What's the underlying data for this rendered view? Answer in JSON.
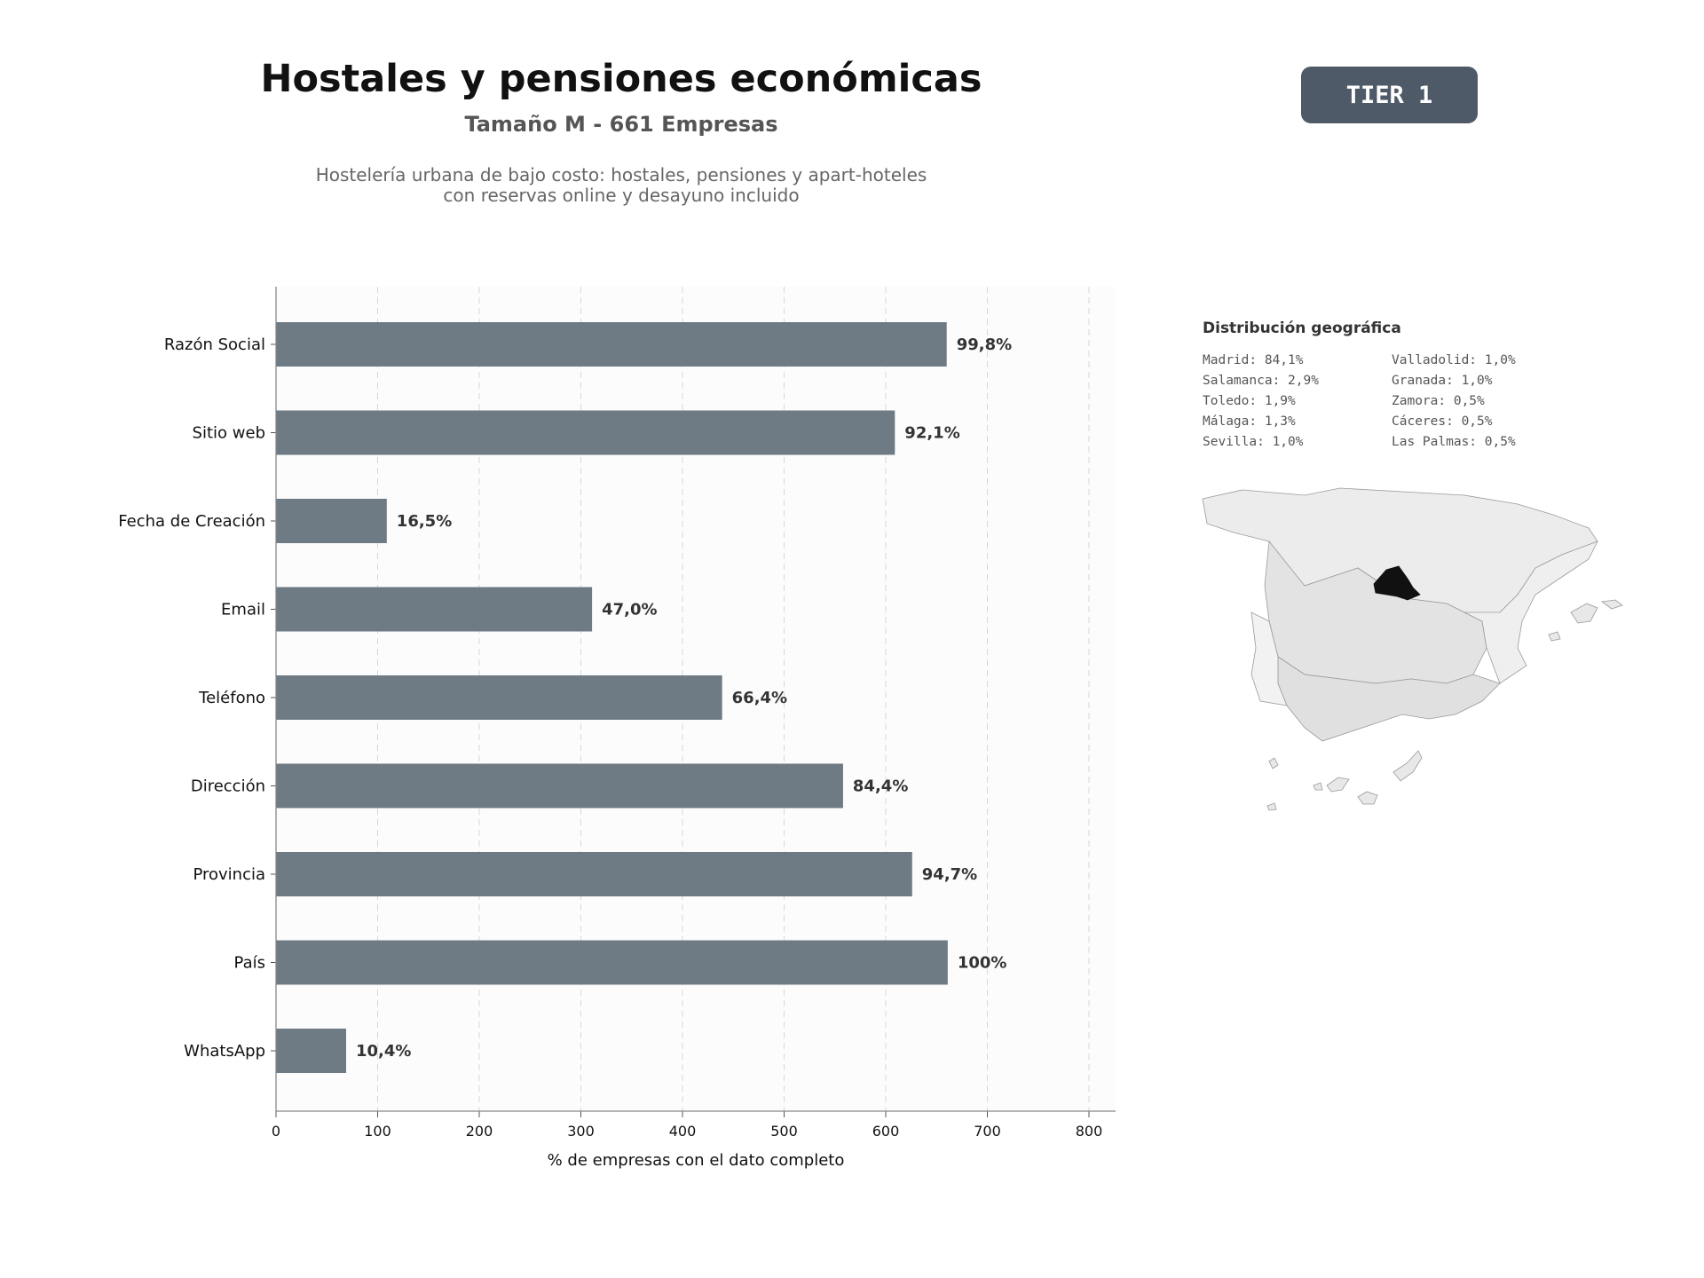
{
  "header": {
    "title": "Hostales y pensiones económicas",
    "subtitle": "Tamaño M - 661 Empresas",
    "description_line1": "Hostelería urbana de bajo costo: hostales, pensiones y apart-hoteles",
    "description_line2": "con reservas online y desayuno incluido",
    "badge": "TIER 1"
  },
  "colors": {
    "bar": "#6e7a84",
    "badge": "#4e5a67",
    "map_highlight": "#111111",
    "map_default": "#e6e6e6"
  },
  "chart_data": {
    "type": "bar",
    "orientation": "horizontal",
    "categories": [
      "Razón Social",
      "Sitio web",
      "Fecha de Creación",
      "Email",
      "Teléfono",
      "Dirección",
      "Provincia",
      "País",
      "WhatsApp"
    ],
    "values": [
      660,
      609,
      109,
      311,
      439,
      558,
      626,
      661,
      69
    ],
    "data_labels": [
      "99,8%",
      "92,1%",
      "16,5%",
      "47,0%",
      "66,4%",
      "84,4%",
      "94,7%",
      "100%",
      "10,4%"
    ],
    "xlabel": "% de empresas con el dato completo",
    "ylabel": "",
    "xlim": [
      0,
      825
    ],
    "xticks": [
      0,
      100,
      200,
      300,
      400,
      500,
      600,
      700,
      800
    ],
    "grid": "vertical dashed"
  },
  "geo": {
    "title": "Distribución geográfica",
    "items": [
      "Madrid: 84,1%",
      "Valladolid: 1,0%",
      "Salamanca: 2,9%",
      "Granada: 1,0%",
      "Toledo: 1,9%",
      "Zamora: 0,5%",
      "Málaga: 1,3%",
      "Cáceres: 0,5%",
      "Sevilla: 1,0%",
      "Las Palmas: 0,5%"
    ]
  }
}
